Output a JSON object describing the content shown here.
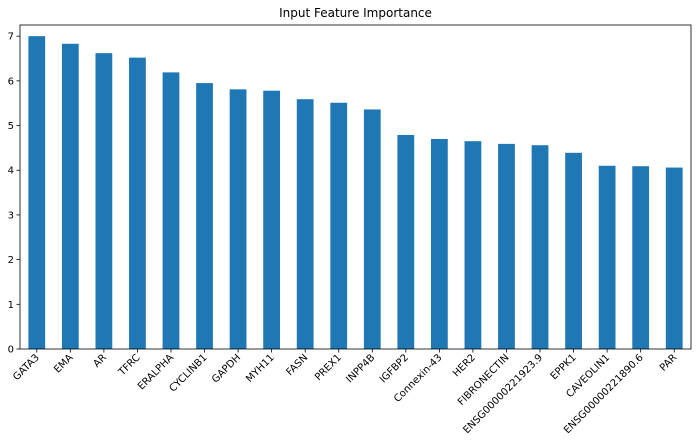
{
  "chart_data": {
    "type": "bar",
    "title": "Input Feature Importance",
    "xlabel": "",
    "ylabel": "",
    "categories": [
      "GATA3",
      "EMA",
      "AR",
      "TFRC",
      "ERALPHA",
      "CYCLINB1",
      "GAPDH",
      "MYH11",
      "FASN",
      "PREX1",
      "INPP4B",
      "IGFBP2",
      "Connexin-43",
      "HER2",
      "FIBRONECTIN",
      "ENSG00000221923.9",
      "EPPK1",
      "CAVEOLIN1",
      "ENSG00000221890.6",
      "PAR"
    ],
    "values": [
      7.0,
      6.83,
      6.62,
      6.52,
      6.19,
      5.95,
      5.81,
      5.78,
      5.59,
      5.51,
      5.36,
      4.79,
      4.7,
      4.65,
      4.59,
      4.56,
      4.39,
      4.1,
      4.09,
      4.06
    ],
    "ylim": [
      0,
      7.25
    ],
    "yticks": [
      0,
      1,
      2,
      3,
      4,
      5,
      6,
      7
    ],
    "bar_color": "#1f77b4",
    "grid": false,
    "legend": false
  }
}
